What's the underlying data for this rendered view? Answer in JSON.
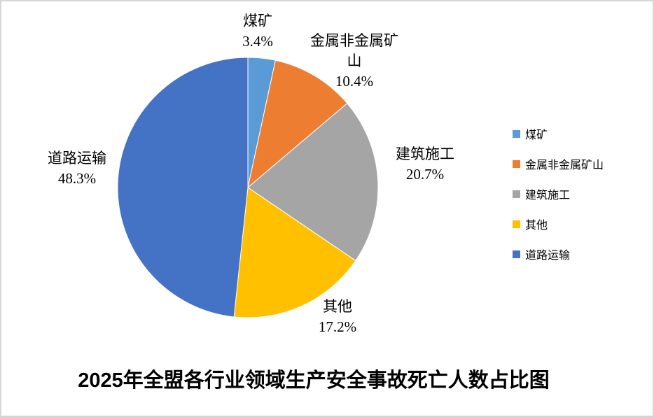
{
  "chart_data": {
    "type": "pie",
    "title": "2025年全盟各行业领域生产安全事故死亡人数占比图",
    "categories": [
      "煤矿",
      "金属非金属矿山",
      "建筑施工",
      "其他",
      "道路运输"
    ],
    "values": [
      3.4,
      10.4,
      20.7,
      17.2,
      48.3
    ],
    "value_unit": "%",
    "colors": [
      "#5B9BD5",
      "#ED7D31",
      "#A5A5A5",
      "#FFC000",
      "#4472C4"
    ],
    "slice_names": [
      "coal-mine",
      "metal-nonmetal-mine",
      "construction",
      "other",
      "road-transport"
    ],
    "labels": [
      {
        "lines": [
          "煤矿",
          "3.4%"
        ]
      },
      {
        "lines": [
          "金属非金属矿",
          "山",
          "10.4%"
        ]
      },
      {
        "lines": [
          "建筑施工",
          "20.7%"
        ]
      },
      {
        "lines": [
          "其他",
          "17.2%"
        ]
      },
      {
        "lines": [
          "道路运输",
          "48.3%"
        ]
      }
    ],
    "legend": {
      "position": "right",
      "entries": [
        "煤矿",
        "金属非金属矿山",
        "建筑施工",
        "其他",
        "道路运输"
      ]
    },
    "start_angle_deg": 0,
    "direction": "clockwise",
    "grid": false
  }
}
